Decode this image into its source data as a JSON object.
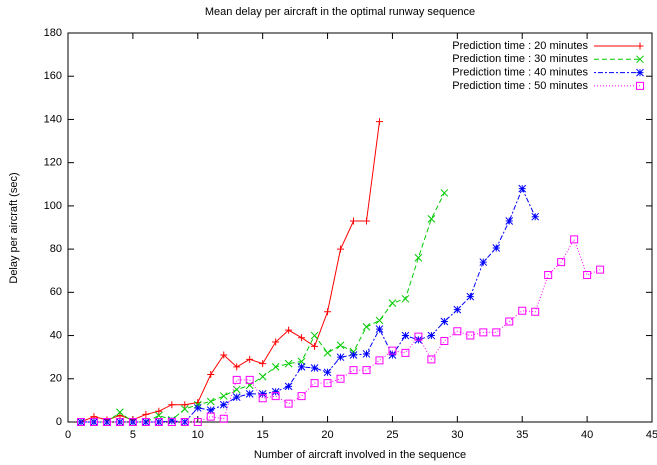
{
  "chart_data": {
    "type": "line",
    "title": "Mean delay per aircraft in the optimal runway sequence",
    "xlabel": "Number of aircraft involved in the sequence",
    "ylabel": "Delay per aircraft (sec)",
    "xlim": [
      0,
      45
    ],
    "xticks": [
      0,
      5,
      10,
      15,
      20,
      25,
      30,
      35,
      40,
      45
    ],
    "ylim": [
      0,
      180
    ],
    "yticks": [
      0,
      20,
      40,
      60,
      80,
      100,
      120,
      140,
      160,
      180
    ],
    "legend": "upper right",
    "series": [
      {
        "name": "Prediction time : 20 minutes",
        "color": "#ff0000",
        "marker": "plus",
        "line_style": "solid",
        "x": [
          1,
          2,
          3,
          4,
          5,
          6,
          7,
          8,
          9,
          10,
          11,
          12,
          13,
          14,
          15,
          16,
          17,
          18,
          19,
          20,
          21,
          22,
          23,
          24
        ],
        "values": [
          0,
          2.5,
          1,
          3,
          1,
          3.5,
          5,
          8,
          8,
          9,
          22,
          31,
          25.5,
          29,
          27,
          37,
          42.5,
          39,
          35,
          51,
          80,
          93,
          93,
          139
        ]
      },
      {
        "name": "Prediction time : 30 minutes",
        "color": "#00cc00",
        "marker": "cross",
        "line_style": "dashed",
        "x": [
          1,
          2,
          3,
          4,
          5,
          6,
          7,
          8,
          9,
          10,
          11,
          12,
          13,
          14,
          15,
          16,
          17,
          18,
          19,
          20,
          21,
          22,
          23,
          24,
          25,
          26,
          27,
          28,
          29
        ],
        "values": [
          0,
          0,
          0,
          4.5,
          0,
          0,
          3,
          1,
          6,
          8,
          9.5,
          12,
          15,
          17,
          21,
          25.5,
          27,
          28,
          40,
          32,
          35.5,
          32.5,
          44,
          47,
          55,
          57,
          76,
          94,
          106
        ]
      },
      {
        "name": "Prediction time : 40 minutes",
        "color": "#0000ff",
        "marker": "star",
        "line_style": "dash-dot",
        "x": [
          1,
          2,
          3,
          4,
          5,
          6,
          7,
          8,
          9,
          10,
          11,
          12,
          13,
          14,
          15,
          16,
          17,
          18,
          19,
          20,
          21,
          22,
          23,
          24,
          25,
          26,
          27,
          28,
          29,
          30,
          31,
          32,
          33,
          34,
          35,
          36
        ],
        "values": [
          0,
          0,
          0,
          0,
          0,
          0,
          0,
          0.5,
          0,
          6.5,
          5.5,
          8,
          11.5,
          13,
          13,
          14,
          16.5,
          25.5,
          25,
          23,
          30,
          31,
          31.5,
          43,
          31,
          40,
          38,
          40,
          46.5,
          52,
          58,
          74,
          80.5,
          93,
          108,
          95
        ]
      },
      {
        "name": "Prediction time : 50 minutes",
        "color": "#ff00ff",
        "marker": "square",
        "line_style": "dotted",
        "x": [
          1,
          2,
          3,
          4,
          5,
          6,
          7,
          8,
          9,
          10,
          11,
          12,
          13,
          14,
          15,
          16,
          17,
          18,
          19,
          20,
          21,
          22,
          23,
          24,
          25,
          26,
          27,
          28,
          29,
          30,
          31,
          32,
          33,
          34,
          35,
          36,
          37,
          38,
          39,
          40,
          41
        ],
        "values": [
          0,
          0,
          0,
          0,
          0,
          0,
          0,
          0,
          0,
          0,
          2.5,
          1.5,
          19.5,
          19.5,
          11,
          12,
          8.5,
          12,
          18,
          18,
          20,
          24,
          24,
          28.5,
          33,
          32,
          39.5,
          29,
          37.5,
          42,
          40,
          41.5,
          41.5,
          46.5,
          51.5,
          51,
          68,
          74,
          84.5,
          68,
          70.5
        ]
      }
    ]
  }
}
